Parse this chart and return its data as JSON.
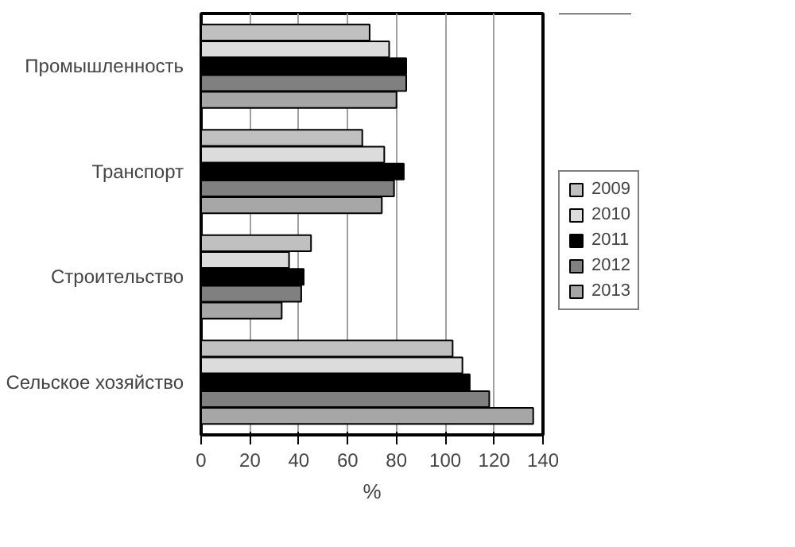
{
  "chart_data": {
    "type": "bar",
    "orientation": "horizontal",
    "categories": [
      "Промышленность",
      "Транспорт",
      "Строительство",
      "Сельское хозяйство"
    ],
    "series": [
      {
        "name": "2009",
        "color": "#c0c0c0",
        "values": [
          69,
          66,
          45,
          103
        ]
      },
      {
        "name": "2010",
        "color": "#dcdcdc",
        "values": [
          77,
          75,
          36,
          107
        ]
      },
      {
        "name": "2011",
        "color": "#000000",
        "values": [
          84,
          83,
          42,
          110
        ]
      },
      {
        "name": "2012",
        "color": "#808080",
        "values": [
          84,
          79,
          41,
          118
        ]
      },
      {
        "name": "2013",
        "color": "#a6a6a6",
        "values": [
          80,
          74,
          33,
          136
        ]
      }
    ],
    "xlabel": "%",
    "xlim": [
      0,
      140
    ],
    "xticks": [
      0,
      20,
      40,
      60,
      80,
      100,
      120,
      140
    ],
    "grid": "x",
    "legend": "right"
  }
}
